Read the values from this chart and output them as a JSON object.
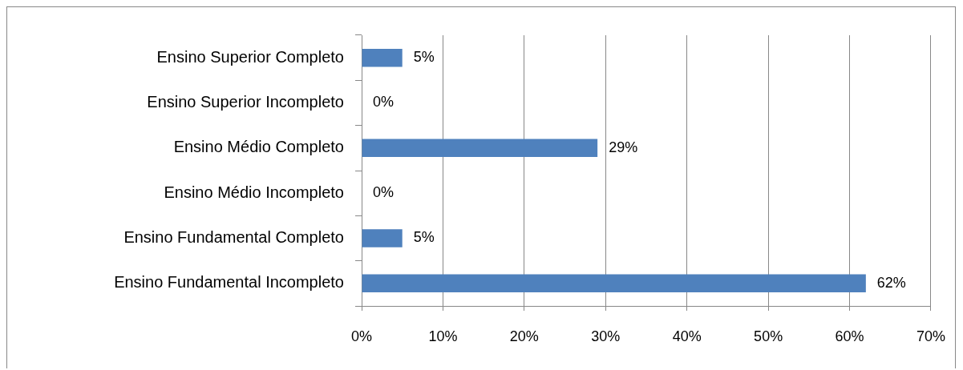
{
  "chart_data": {
    "type": "bar",
    "orientation": "horizontal",
    "categories": [
      "Ensino Superior Completo",
      "Ensino Superior Incompleto",
      "Ensino Médio Completo",
      "Ensino Médio Incompleto",
      "Ensino Fundamental Completo",
      "Ensino Fundamental Incompleto"
    ],
    "values": [
      5,
      0,
      29,
      0,
      5,
      62
    ],
    "value_labels": [
      "5%",
      "0%",
      "29%",
      "0%",
      "5%",
      "62%"
    ],
    "color": "#4f81bd",
    "xlim": [
      0,
      70
    ],
    "xticks": [
      {
        "value": 0,
        "label": "0%"
      },
      {
        "value": 10,
        "label": "10%"
      },
      {
        "value": 20,
        "label": "20%"
      },
      {
        "value": 30,
        "label": "30%"
      },
      {
        "value": 40,
        "label": "40%"
      },
      {
        "value": 50,
        "label": "50%"
      },
      {
        "value": 60,
        "label": "60%"
      },
      {
        "value": 70,
        "label": "70%"
      }
    ],
    "grid": "x",
    "legend": false
  }
}
